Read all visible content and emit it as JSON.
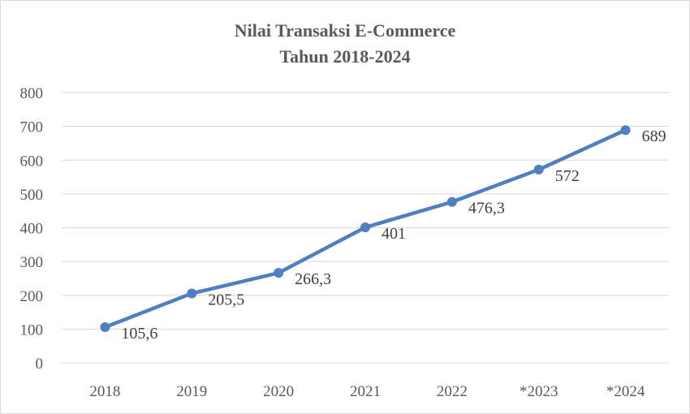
{
  "chart_data": {
    "type": "line",
    "title_lines": [
      "Nilai Transaksi E-Commerce",
      "Tahun 2018-2024"
    ],
    "categories": [
      "2018",
      "2019",
      "2020",
      "2021",
      "2022",
      "*2023",
      "*2024"
    ],
    "series": [
      {
        "name": "Nilai Transaksi",
        "values": [
          105.6,
          205.5,
          266.3,
          401,
          476.3,
          572,
          689
        ],
        "labels": [
          "105,6",
          "205,5",
          "266,3",
          "401",
          "476,3",
          "572",
          "689"
        ]
      }
    ],
    "yticks": [
      "0",
      "100",
      "200",
      "300",
      "400",
      "500",
      "600",
      "700",
      "800"
    ],
    "ylim": [
      0,
      800
    ],
    "grid": true,
    "legend": "none",
    "colors": {
      "line": "#4f7fc0",
      "grid": "#d9d9d9",
      "text": "#595959"
    }
  }
}
